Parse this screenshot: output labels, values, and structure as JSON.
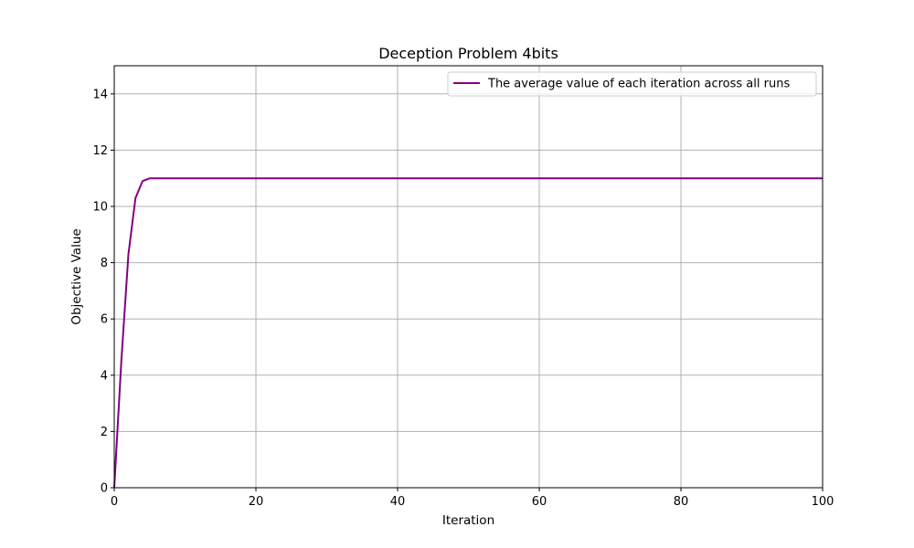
{
  "chart_data": {
    "type": "line",
    "title": "Deception Problem 4bits",
    "xlabel": "Iteration",
    "ylabel": "Objective Value",
    "xlim": [
      0,
      100
    ],
    "ylim": [
      0,
      15
    ],
    "xticks": [
      0,
      20,
      40,
      60,
      80,
      100
    ],
    "yticks": [
      0,
      2,
      4,
      6,
      8,
      10,
      12,
      14
    ],
    "grid": true,
    "legend_position": "top-right",
    "series": [
      {
        "name": "The average value of each iteration across all runs",
        "color": "#800080",
        "x": [
          0,
          1,
          2,
          3,
          4,
          5,
          6,
          10,
          20,
          30,
          40,
          50,
          60,
          70,
          80,
          90,
          100
        ],
        "y": [
          0,
          4.5,
          8.3,
          10.3,
          10.9,
          11.0,
          11.0,
          11.0,
          11.0,
          11.0,
          11.0,
          11.0,
          11.0,
          11.0,
          11.0,
          11.0,
          11.0
        ]
      }
    ]
  }
}
